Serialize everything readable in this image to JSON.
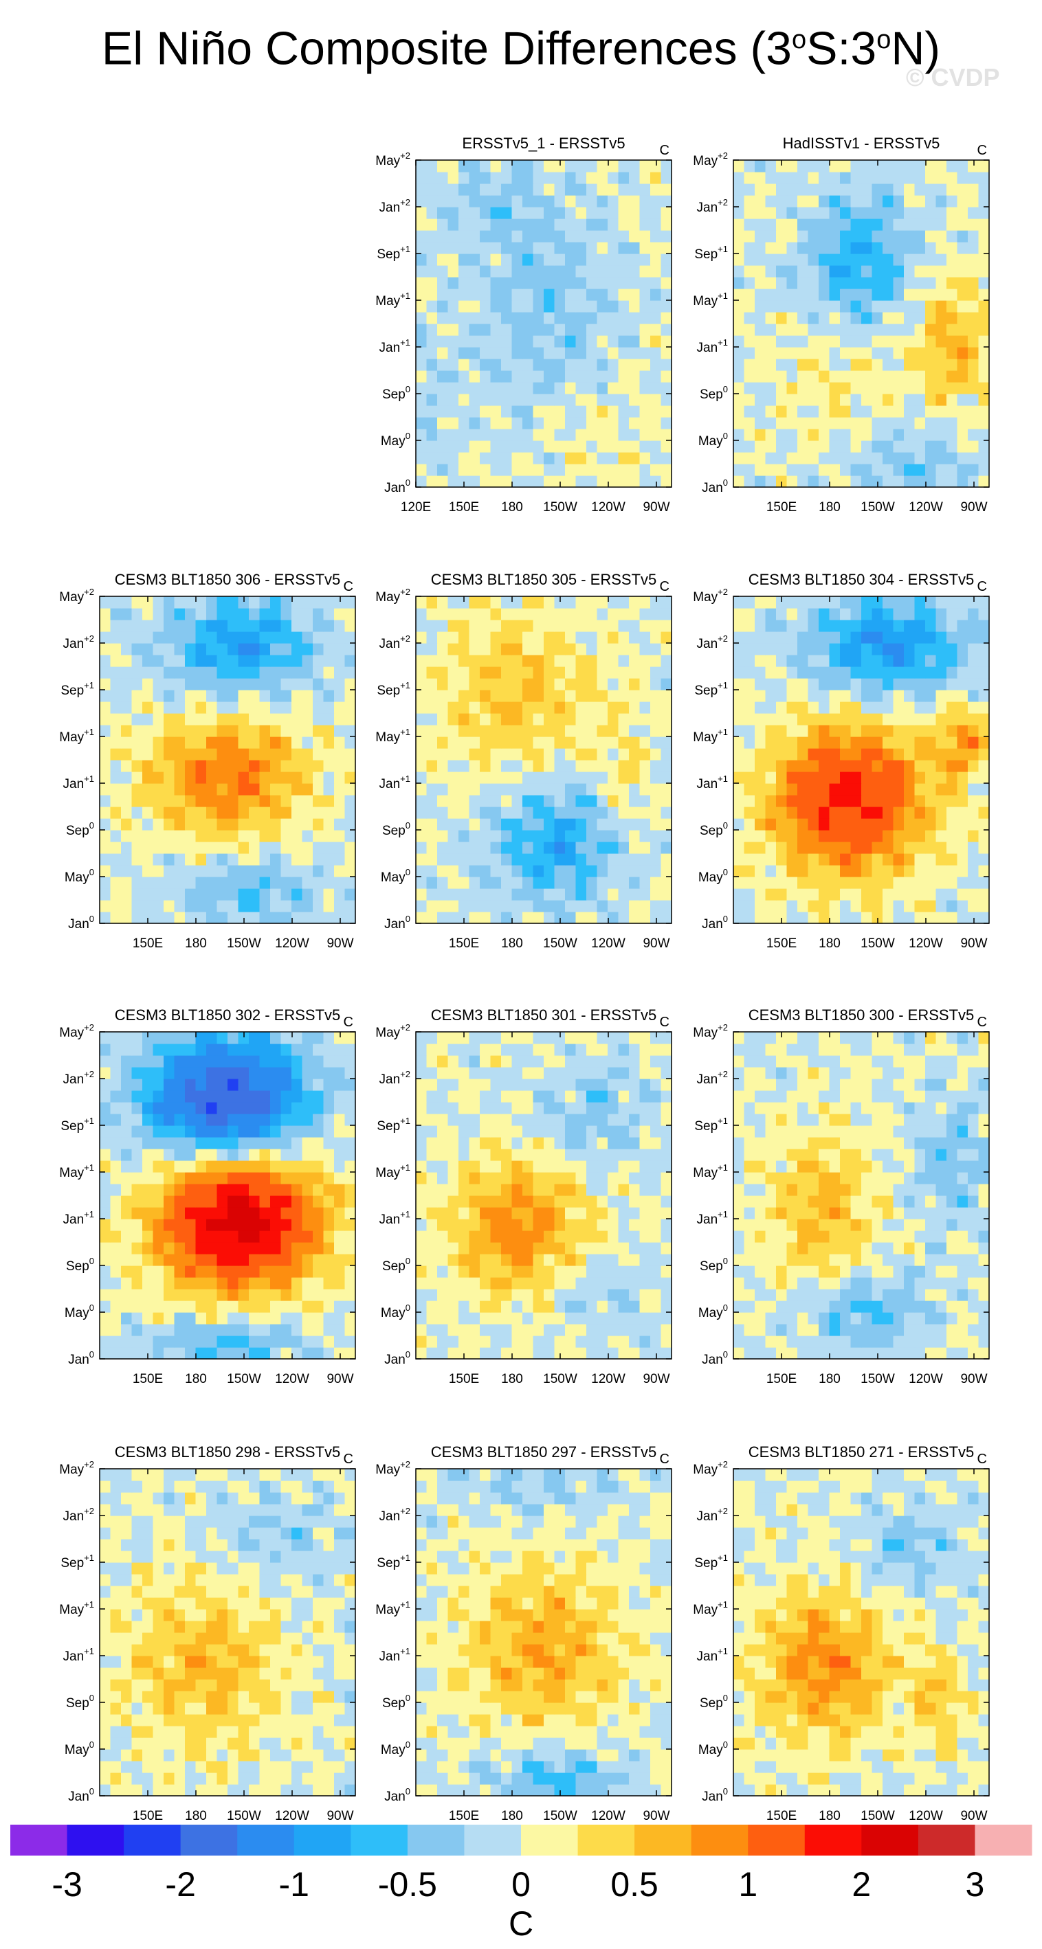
{
  "figure": {
    "title_main": "El Niño Composite Differences (3",
    "title_deg1": "o",
    "title_mid": "S:3",
    "title_deg2": "o",
    "title_end": "N)",
    "watermark": "© CVDP"
  },
  "chart_data": {
    "type": "heatmap",
    "units": "C",
    "y_tick_labels": [
      {
        "base": "Jan",
        "sup": "0"
      },
      {
        "base": "May",
        "sup": "0"
      },
      {
        "base": "Sep",
        "sup": "0"
      },
      {
        "base": "Jan",
        "sup": "+1"
      },
      {
        "base": "May",
        "sup": "+1"
      },
      {
        "base": "Sep",
        "sup": "+1"
      },
      {
        "base": "Jan",
        "sup": "+2"
      },
      {
        "base": "May",
        "sup": "+2"
      }
    ],
    "x_tick_labels_full": [
      "120E",
      "150E",
      "180",
      "150W",
      "120W",
      "90W"
    ],
    "x_tick_labels": [
      "150E",
      "180",
      "150W",
      "120W",
      "90W"
    ],
    "colorbar": {
      "labels": [
        "-3",
        "-2",
        "-1",
        "-0.5",
        "0",
        "0.5",
        "1",
        "2",
        "3"
      ],
      "unit": "C",
      "colors": [
        "#8c2be8",
        "#2e10f0",
        "#2040f2",
        "#3d72e3",
        "#2b8cf0",
        "#20a5f5",
        "#2ebef9",
        "#86c8f0",
        "#b6ddf3",
        "#fcf8a3",
        "#fddb4a",
        "#fcb823",
        "#fd8e10",
        "#fe5f10",
        "#fb0d05",
        "#da0303",
        "#cd2a2a",
        "#f7b0b2"
      ]
    },
    "panels": [
      {
        "title": "ERSSTv5_1 - ERSSTv5",
        "unit": "C",
        "row": 0,
        "col": 1,
        "full_x": true,
        "features": [
          {
            "t": 0.55,
            "x": 0.5,
            "val": -0.35,
            "st": 0.35,
            "sx": 0.3
          },
          {
            "t": 0.88,
            "x": 0.3,
            "val": -0.3,
            "st": 0.12,
            "sx": 0.2
          },
          {
            "t": 0.15,
            "x": 0.7,
            "val": 0.15,
            "st": 0.2,
            "sx": 0.25
          },
          {
            "t": 0.25,
            "x": 0.05,
            "val": -0.2,
            "st": 0.25,
            "sx": 0.1
          }
        ]
      },
      {
        "title": "HadISSTv1 - ERSSTv5",
        "unit": "C",
        "row": 0,
        "col": 2,
        "full_x": false,
        "features": [
          {
            "t": 0.7,
            "x": 0.5,
            "val": -0.7,
            "st": 0.2,
            "sx": 0.22
          },
          {
            "t": 0.45,
            "x": 0.85,
            "val": 0.6,
            "st": 0.2,
            "sx": 0.15
          },
          {
            "t": 0.08,
            "x": 0.7,
            "val": -0.4,
            "st": 0.12,
            "sx": 0.25
          },
          {
            "t": 0.3,
            "x": 0.4,
            "val": 0.2,
            "st": 0.2,
            "sx": 0.25
          }
        ]
      },
      {
        "title": "CESM3 BLT1850 306 - ERSSTv5",
        "unit": "C",
        "row": 1,
        "col": 0,
        "full_x": false,
        "features": [
          {
            "t": 0.45,
            "x": 0.5,
            "val": 1.0,
            "st": 0.18,
            "sx": 0.3
          },
          {
            "t": 0.85,
            "x": 0.55,
            "val": -0.9,
            "st": 0.15,
            "sx": 0.28
          },
          {
            "t": 0.1,
            "x": 0.6,
            "val": -0.5,
            "st": 0.1,
            "sx": 0.3
          }
        ]
      },
      {
        "title": "CESM3 BLT1850 305 - ERSSTv5",
        "unit": "C",
        "row": 1,
        "col": 1,
        "full_x": false,
        "features": [
          {
            "t": 0.25,
            "x": 0.55,
            "val": -0.8,
            "st": 0.18,
            "sx": 0.25
          },
          {
            "t": 0.7,
            "x": 0.4,
            "val": 0.5,
            "st": 0.25,
            "sx": 0.3
          },
          {
            "t": 0.45,
            "x": 0.8,
            "val": 0.3,
            "st": 0.2,
            "sx": 0.1
          }
        ]
      },
      {
        "title": "CESM3 BLT1850 304 - ERSSTv5",
        "unit": "C",
        "row": 1,
        "col": 2,
        "full_x": false,
        "features": [
          {
            "t": 0.38,
            "x": 0.45,
            "val": 1.6,
            "st": 0.22,
            "sx": 0.3
          },
          {
            "t": 0.85,
            "x": 0.6,
            "val": -1.0,
            "st": 0.15,
            "sx": 0.3
          },
          {
            "t": 0.55,
            "x": 0.9,
            "val": 0.8,
            "st": 0.1,
            "sx": 0.1
          }
        ]
      },
      {
        "title": "CESM3 BLT1850 302 - ERSSTv5",
        "unit": "C",
        "row": 2,
        "col": 0,
        "full_x": false,
        "features": [
          {
            "t": 0.42,
            "x": 0.55,
            "val": 2.2,
            "st": 0.2,
            "sx": 0.3
          },
          {
            "t": 0.8,
            "x": 0.5,
            "val": -2.0,
            "st": 0.18,
            "sx": 0.3
          },
          {
            "t": 0.05,
            "x": 0.5,
            "val": -0.6,
            "st": 0.08,
            "sx": 0.3
          }
        ]
      },
      {
        "title": "CESM3 BLT1850 301 - ERSSTv5",
        "unit": "C",
        "row": 2,
        "col": 1,
        "full_x": false,
        "features": [
          {
            "t": 0.4,
            "x": 0.4,
            "val": 0.9,
            "st": 0.2,
            "sx": 0.25
          },
          {
            "t": 0.75,
            "x": 0.7,
            "val": -0.4,
            "st": 0.15,
            "sx": 0.2
          },
          {
            "t": 0.2,
            "x": 0.7,
            "val": -0.3,
            "st": 0.1,
            "sx": 0.2
          }
        ]
      },
      {
        "title": "CESM3 BLT1850 300 - ERSSTv5",
        "unit": "C",
        "row": 2,
        "col": 2,
        "full_x": false,
        "features": [
          {
            "t": 0.45,
            "x": 0.35,
            "val": 0.6,
            "st": 0.25,
            "sx": 0.2
          },
          {
            "t": 0.15,
            "x": 0.5,
            "val": -0.6,
            "st": 0.12,
            "sx": 0.25
          },
          {
            "t": 0.6,
            "x": 0.85,
            "val": -0.4,
            "st": 0.2,
            "sx": 0.15
          }
        ]
      },
      {
        "title": "CESM3 BLT1850 298 - ERSSTv5",
        "unit": "C",
        "row": 3,
        "col": 0,
        "full_x": false,
        "features": [
          {
            "t": 0.4,
            "x": 0.4,
            "val": 0.6,
            "st": 0.25,
            "sx": 0.3
          },
          {
            "t": 0.8,
            "x": 0.7,
            "val": -0.3,
            "st": 0.15,
            "sx": 0.25
          }
        ]
      },
      {
        "title": "CESM3 BLT1850 297 - ERSSTv5",
        "unit": "C",
        "row": 3,
        "col": 1,
        "full_x": false,
        "features": [
          {
            "t": 0.45,
            "x": 0.5,
            "val": 0.7,
            "st": 0.25,
            "sx": 0.3
          },
          {
            "t": 0.05,
            "x": 0.55,
            "val": -0.6,
            "st": 0.1,
            "sx": 0.25
          },
          {
            "t": 0.95,
            "x": 0.5,
            "val": -0.3,
            "st": 0.08,
            "sx": 0.3
          }
        ]
      },
      {
        "title": "CESM3 BLT1850 271 - ERSSTv5",
        "unit": "C",
        "row": 3,
        "col": 2,
        "full_x": false,
        "features": [
          {
            "t": 0.4,
            "x": 0.35,
            "val": 0.9,
            "st": 0.22,
            "sx": 0.25
          },
          {
            "t": 0.75,
            "x": 0.7,
            "val": -0.4,
            "st": 0.12,
            "sx": 0.2
          },
          {
            "t": 0.3,
            "x": 0.8,
            "val": 0.5,
            "st": 0.15,
            "sx": 0.1
          }
        ]
      }
    ]
  }
}
